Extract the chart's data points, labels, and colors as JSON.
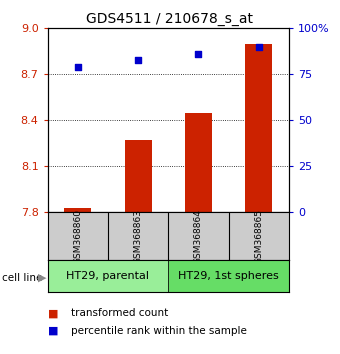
{
  "title": "GDS4511 / 210678_s_at",
  "samples": [
    "GSM368860",
    "GSM368863",
    "GSM368864",
    "GSM368865"
  ],
  "bar_values": [
    7.83,
    8.27,
    8.45,
    8.9
  ],
  "percentile_values": [
    79,
    83,
    86,
    90
  ],
  "ylim_left": [
    7.8,
    9.0
  ],
  "ylim_right": [
    0,
    100
  ],
  "yticks_left": [
    7.8,
    8.1,
    8.4,
    8.7,
    9.0
  ],
  "yticks_right": [
    0,
    25,
    50,
    75,
    100
  ],
  "bar_color": "#cc2200",
  "dot_color": "#0000cc",
  "bar_width": 0.45,
  "groups": [
    {
      "label": "HT29, parental",
      "indices": [
        0,
        1
      ],
      "color": "#99ee99"
    },
    {
      "label": "HT29, 1st spheres",
      "indices": [
        2,
        3
      ],
      "color": "#66dd66"
    }
  ],
  "cell_line_label": "cell line",
  "legend_bar_label": "transformed count",
  "legend_dot_label": "percentile rank within the sample",
  "xlabel_area_bg": "#cccccc",
  "title_fontsize": 10,
  "tick_fontsize": 8,
  "label_fontsize": 7.5,
  "group_label_fontsize": 8,
  "sample_fontsize": 6.5
}
